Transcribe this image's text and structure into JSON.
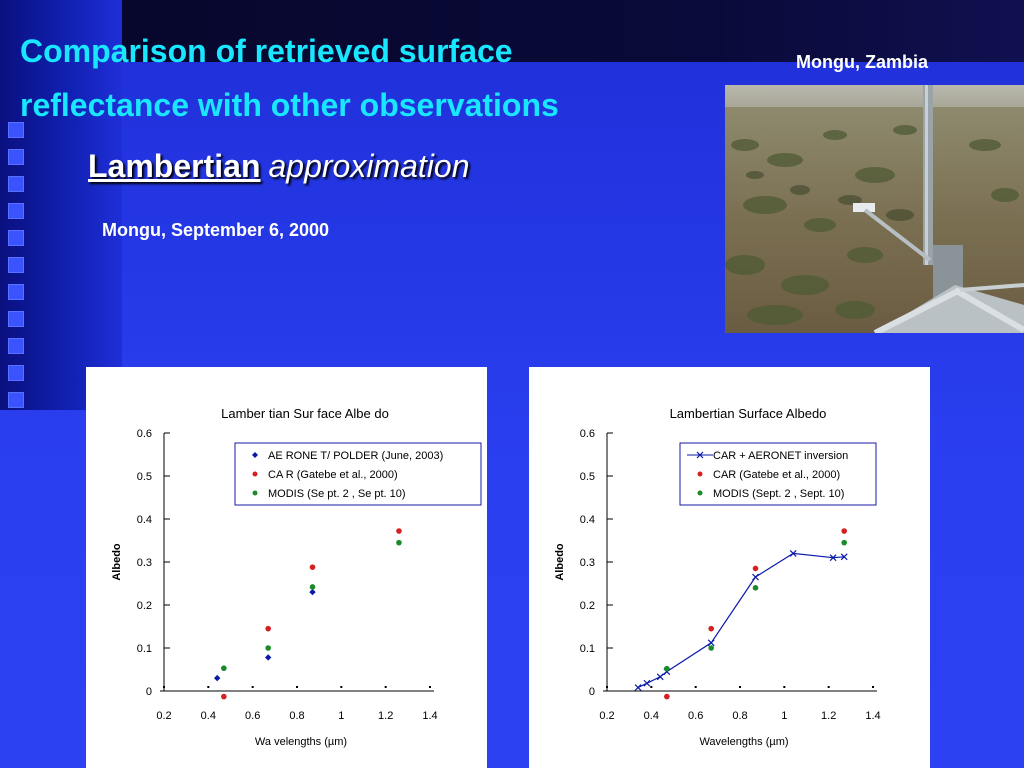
{
  "slide": {
    "title_line1": "Comparison of retrieved surface",
    "title_line2": "reflectance with other observations",
    "subtitle_underlined": "Lambertian",
    "subtitle_italic": "approximation",
    "date_label": "Mongu, September 6, 2000",
    "photo_caption": "Mongu, Zambia"
  },
  "colors": {
    "title": "#19e6ff",
    "aeronet": "#0a1aa8",
    "car": "#d42020",
    "modis": "#1a8a2a"
  },
  "chart_data": [
    {
      "type": "scatter",
      "title": "Lamber tian Sur face Albe do",
      "xlabel": "Wa velengths (",
      "xlabel_unit": "µm)",
      "ylabel": "Albedo",
      "xlim": [
        0.2,
        1.4
      ],
      "ylim": [
        0,
        0.6
      ],
      "xticks": [
        "0.2",
        "0.4",
        "0.6",
        "0.8",
        "1",
        "1.2",
        "1.4"
      ],
      "yticks": [
        "0",
        "0.1",
        "0.2",
        "0.3",
        "0.4",
        "0.5",
        "0.6"
      ],
      "legend_position": "top-right",
      "series": [
        {
          "name": "AE RONE T/ POLDER (June, 2003)",
          "marker": "diamond",
          "color": "#0a1aa8",
          "points": [
            [
              0.44,
              0.03
            ],
            [
              0.67,
              0.078
            ],
            [
              0.87,
              0.23
            ]
          ]
        },
        {
          "name": "CA R (Gatebe et al., 2000)",
          "marker": "circle",
          "color": "#d42020",
          "points": [
            [
              0.47,
              -0.013
            ],
            [
              0.67,
              0.145
            ],
            [
              0.87,
              0.288
            ],
            [
              1.26,
              0.372
            ]
          ]
        },
        {
          "name": "MODIS (Se pt. 2 , Se pt. 10)",
          "marker": "circle",
          "color": "#1a8a2a",
          "points": [
            [
              0.47,
              0.053
            ],
            [
              0.67,
              0.1
            ],
            [
              0.87,
              0.242
            ],
            [
              1.26,
              0.345
            ]
          ]
        }
      ]
    },
    {
      "type": "line",
      "title": "Lambertian Surface Albedo",
      "xlabel": "Wavelengths (",
      "xlabel_unit": "µm)",
      "ylabel": "Albedo",
      "xlim": [
        0.2,
        1.4
      ],
      "ylim": [
        0,
        0.6
      ],
      "xticks": [
        "0.2",
        "0.4",
        "0.6",
        "0.8",
        "1",
        "1.2",
        "1.4"
      ],
      "yticks": [
        "0",
        "0.1",
        "0.2",
        "0.3",
        "0.4",
        "0.5",
        "0.6"
      ],
      "legend_position": "top-right",
      "series": [
        {
          "name": "CAR + AERONET inversion",
          "marker": "x-line",
          "color": "#0a1aa8",
          "points": [
            [
              0.34,
              0.008
            ],
            [
              0.38,
              0.018
            ],
            [
              0.44,
              0.033
            ],
            [
              0.47,
              0.045
            ],
            [
              0.67,
              0.112
            ],
            [
              0.87,
              0.265
            ],
            [
              1.04,
              0.32
            ],
            [
              1.22,
              0.31
            ],
            [
              1.27,
              0.312
            ]
          ]
        },
        {
          "name": "CAR (Gatebe et al., 2000)",
          "marker": "circle",
          "color": "#d42020",
          "points": [
            [
              0.47,
              -0.013
            ],
            [
              0.67,
              0.145
            ],
            [
              0.87,
              0.285
            ],
            [
              1.27,
              0.372
            ]
          ]
        },
        {
          "name": "MODIS (Sept. 2 , Sept. 10)",
          "marker": "circle",
          "color": "#1a8a2a",
          "points": [
            [
              0.47,
              0.052
            ],
            [
              0.67,
              0.1
            ],
            [
              0.87,
              0.24
            ],
            [
              1.27,
              0.345
            ]
          ]
        }
      ]
    }
  ]
}
